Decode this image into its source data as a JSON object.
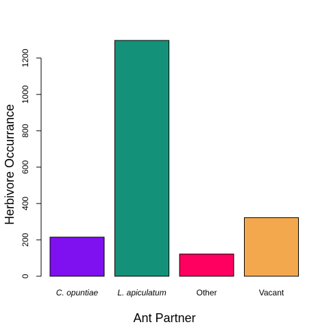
{
  "chart_data": {
    "type": "bar",
    "categories": [
      "C. opuntiae",
      "L. apiculatum",
      "Other",
      "Vacant"
    ],
    "italic_categories": [
      true,
      true,
      false,
      false
    ],
    "values": [
      215,
      1297,
      122,
      322
    ],
    "colors": [
      "#7f10ef",
      "#149279",
      "#ff0060",
      "#f4a84e"
    ],
    "title": "",
    "xlabel": "Ant Partner",
    "ylabel": "Herbivore Occurrance",
    "ylim": [
      0,
      1297
    ],
    "yticks": [
      0,
      200,
      400,
      600,
      800,
      1000,
      1200
    ],
    "grid": false,
    "legend": "none"
  }
}
